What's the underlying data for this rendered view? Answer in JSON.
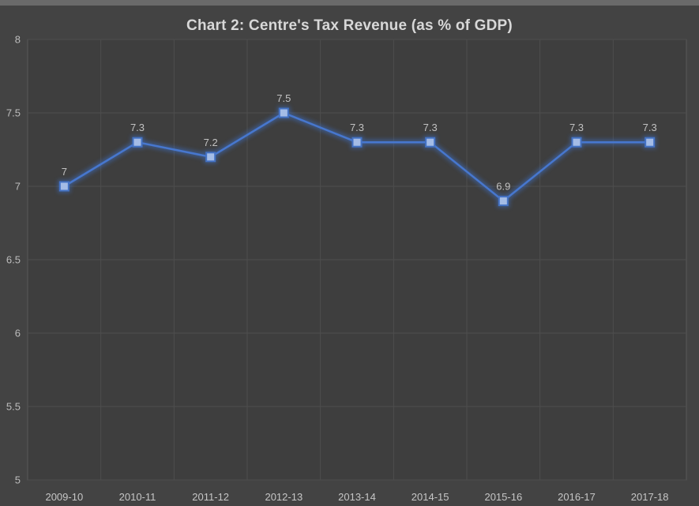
{
  "chart_data": {
    "type": "line",
    "title": "Chart 2: Centre's Tax Revenue (as % of GDP)",
    "categories": [
      "2009-10",
      "2010-11",
      "2011-12",
      "2012-13",
      "2013-14",
      "2014-15",
      "2015-16",
      "2016-17",
      "2017-18"
    ],
    "series": [
      {
        "name": "Centre's Tax Revenue (as % of GDP)",
        "values": [
          7,
          7.3,
          7.2,
          7.5,
          7.3,
          7.3,
          6.9,
          7.3,
          7.3
        ]
      }
    ],
    "data_labels": [
      "7",
      "7.3",
      "7.2",
      "7.5",
      "7.3",
      "7.3",
      "6.9",
      "7.3",
      "7.3"
    ],
    "xlabel": "",
    "ylabel": "",
    "ylim": [
      5,
      8
    ],
    "ytick_values": [
      8,
      7.5,
      7,
      6.5,
      6,
      5.5,
      5
    ],
    "ytick_labels": [
      "8",
      "7.5",
      "7",
      "6.5",
      "6",
      "5.5",
      "5"
    ],
    "grid": "on",
    "legend": "none"
  },
  "colors": {
    "background": "#434343",
    "top_strip": "#6a6a6a",
    "plot_background": "#3e3e3e",
    "plot_border": "#585858",
    "gridline": "#4e4e4e",
    "line": "#4777ce",
    "glow": "#3e6fc4",
    "marker_fill": "#a4bce6",
    "marker_border": "#4472c4",
    "title_text": "#d8d8d8",
    "axis_text": "#bdbdbd",
    "xaxis_text": "#c6c6c6",
    "label_text": "#c2c2c2"
  }
}
